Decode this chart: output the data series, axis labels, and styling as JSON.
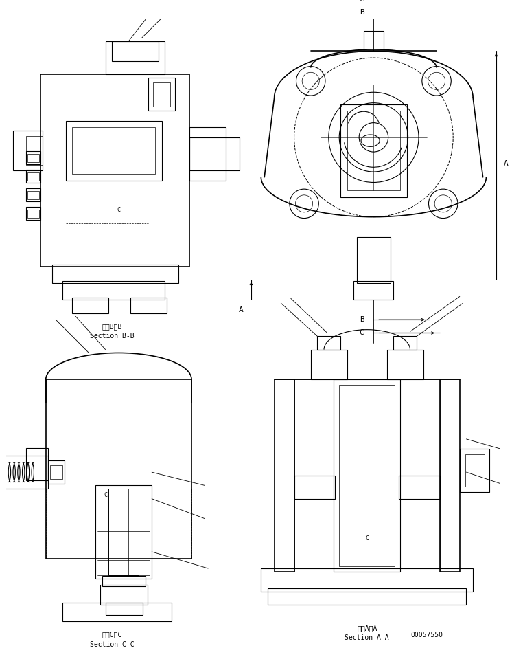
{
  "background": "#ffffff",
  "line_color": "#000000",
  "lw": 0.8,
  "lw_thick": 1.2,
  "lw_thin": 0.5,
  "font": "monospace",
  "fs_label": 7,
  "fs_dim": 8,
  "labels": {
    "bb_jp": "断面B－B",
    "bb_en": "Section B-B",
    "cc_jp": "断面C－C",
    "cc_en": "Section C-C",
    "aa_jp": "断面A－A",
    "aa_en": "Section A-A",
    "part_no": "00057550",
    "A": "A",
    "B": "B",
    "C": "C"
  }
}
